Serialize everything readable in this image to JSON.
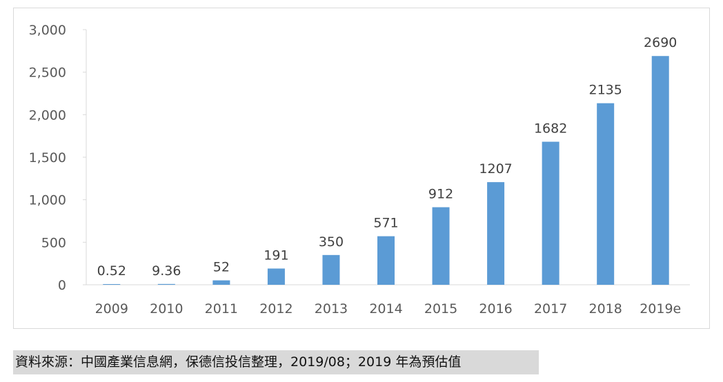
{
  "chart_data": {
    "type": "bar",
    "categories": [
      "2009",
      "2010",
      "2011",
      "2012",
      "2013",
      "2014",
      "2015",
      "2016",
      "2017",
      "2018",
      "2019e"
    ],
    "values": [
      0.52,
      9.36,
      52,
      191,
      350,
      571,
      912,
      1207,
      1682,
      2135,
      2690
    ],
    "data_labels": [
      "0.52",
      "9.36",
      "52",
      "191",
      "350",
      "571",
      "912",
      "1207",
      "1682",
      "2135",
      "2690"
    ],
    "yticks": [
      0,
      500,
      1000,
      1500,
      2000,
      2500,
      3000
    ],
    "ytick_labels": [
      "0",
      "500",
      "1,000",
      "1,500",
      "2,000",
      "2,500",
      "3,000"
    ],
    "ylim": [
      0,
      3000
    ],
    "title": "",
    "xlabel": "",
    "ylabel": "",
    "bar_color": "#5b9bd5",
    "grid": false,
    "legend": "none"
  },
  "source_note": "資料來源：中國產業信息網，保德信投信整理，2019/08；2019 年為預估值"
}
